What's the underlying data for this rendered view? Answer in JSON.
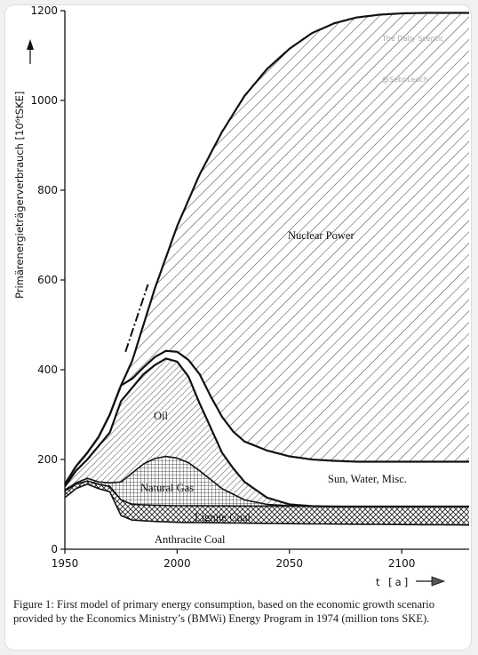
{
  "chart_data": {
    "type": "area",
    "ylabel": "Primärenergieträgerverbrauch [10⁶tSKE]",
    "xlabel": "t [a]",
    "xlim": [
      1950,
      2130
    ],
    "ylim": [
      0,
      1200
    ],
    "x_ticks": [
      1950,
      2000,
      2050,
      2100
    ],
    "y_ticks": [
      0,
      200,
      400,
      600,
      800,
      1000,
      1200
    ],
    "x_tick_labels": [
      "1950",
      "2000",
      "2050",
      "2100"
    ],
    "y_tick_labels": [
      "0",
      "200",
      "400",
      "600",
      "800",
      "1000",
      "1200"
    ],
    "bmwi_label": [
      "BMWI",
      "1974"
    ],
    "bmwi_projection": {
      "x": [
        1977,
        1987
      ],
      "y": [
        440,
        590
      ]
    },
    "series": [
      {
        "name": "Anthracite Coal",
        "pattern": "blank",
        "x": [
          1950,
          1955,
          1960,
          1965,
          1970,
          1975,
          1980,
          1990,
          2000,
          2050,
          2100,
          2130
        ],
        "y": [
          115,
          135,
          145,
          135,
          128,
          75,
          65,
          62,
          60,
          57,
          55,
          54
        ]
      },
      {
        "name": "Lignite Coal",
        "pattern": "crosshatch",
        "x": [
          1950,
          1955,
          1960,
          1965,
          1970,
          1975,
          1980,
          1990,
          2000,
          2050,
          2100,
          2130
        ],
        "y": [
          130,
          145,
          152,
          145,
          140,
          110,
          100,
          98,
          97,
          96,
          95,
          95
        ]
      },
      {
        "name": "Natural Gas",
        "pattern": "grid",
        "x": [
          1950,
          1955,
          1960,
          1965,
          1970,
          1975,
          1980,
          1985,
          1990,
          1995,
          2000,
          2005,
          2010,
          2020,
          2030,
          2040,
          2050,
          2060,
          2070,
          2130
        ],
        "y": [
          132,
          148,
          158,
          150,
          148,
          150,
          170,
          190,
          202,
          207,
          203,
          193,
          175,
          135,
          110,
          100,
          97,
          96,
          95,
          95
        ]
      },
      {
        "name": "Oil",
        "pattern": "hatch-dense",
        "x": [
          1950,
          1955,
          1960,
          1965,
          1970,
          1975,
          1980,
          1985,
          1990,
          1995,
          2000,
          2005,
          2010,
          2015,
          2020,
          2025,
          2030,
          2040,
          2050,
          2060,
          2070,
          2130
        ],
        "y": [
          140,
          175,
          200,
          230,
          260,
          330,
          360,
          390,
          410,
          425,
          418,
          385,
          325,
          270,
          215,
          180,
          150,
          115,
          100,
          96,
          95,
          95
        ]
      },
      {
        "name": "Sun, Water, Misc.",
        "pattern": "blank",
        "x": [
          1950,
          1955,
          1960,
          1965,
          1970,
          1975,
          1980,
          1985,
          1990,
          1995,
          2000,
          2005,
          2010,
          2015,
          2020,
          2025,
          2030,
          2040,
          2050,
          2060,
          2070,
          2080,
          2100,
          2130
        ],
        "y": [
          145,
          185,
          215,
          250,
          300,
          365,
          380,
          405,
          428,
          442,
          440,
          422,
          390,
          340,
          295,
          262,
          240,
          220,
          207,
          200,
          197,
          195,
          195,
          195
        ]
      },
      {
        "name": "Nuclear Power",
        "pattern": "hatch-wide",
        "x": [
          1950,
          1955,
          1960,
          1965,
          1970,
          1975,
          1980,
          1985,
          1990,
          2000,
          2010,
          2020,
          2030,
          2040,
          2050,
          2060,
          2070,
          2080,
          2090,
          2100,
          2110,
          2120,
          2130
        ],
        "y": [
          145,
          185,
          215,
          250,
          300,
          365,
          420,
          500,
          580,
          720,
          835,
          930,
          1010,
          1070,
          1115,
          1150,
          1172,
          1185,
          1191,
          1194,
          1195,
          1195,
          1195
        ]
      }
    ]
  },
  "annotations": {
    "nuclear": "Nuclear Power",
    "oil": "Oil",
    "gas": "Natural Gas",
    "misc": "Sun, Water, Misc.",
    "lignite": "Lignite Coal",
    "anthracite": "Anthracite Coal"
  },
  "watermark": [
    "The Daily Sceptic",
    "@SebnLeach"
  ],
  "caption": "Figure 1: First model of primary energy consumption, based on the economic growth scenario provided by the Economics Ministry’s (BMWi) Energy Program in 1974 (million tons SKE)."
}
